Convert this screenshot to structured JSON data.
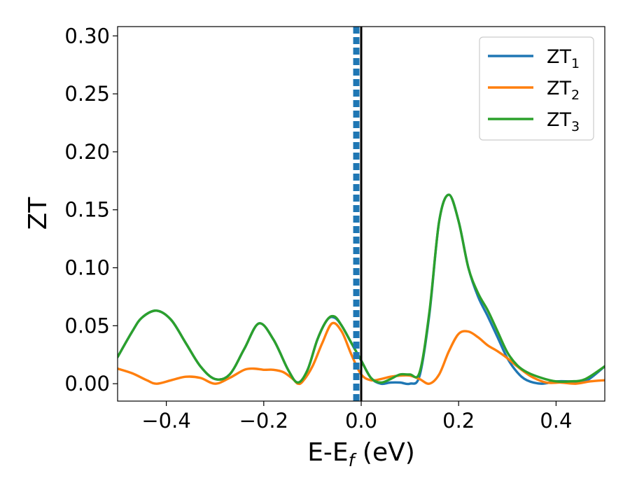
{
  "chart_data": {
    "type": "line",
    "title": "",
    "xlabel": "E-E",
    "xlabel_sub": "f",
    "xlabel_unit": " (eV)",
    "ylabel": "ZT",
    "xlim": [
      -0.5,
      0.5
    ],
    "ylim": [
      -0.015,
      0.308
    ],
    "xticks": [
      -0.4,
      -0.2,
      0.0,
      0.2,
      0.4
    ],
    "xtick_labels": [
      "−0.4",
      "−0.2",
      "0.0",
      "0.2",
      "0.4"
    ],
    "yticks": [
      0.0,
      0.05,
      0.1,
      0.15,
      0.2,
      0.25,
      0.3
    ],
    "ytick_labels": [
      "0.00",
      "0.05",
      "0.10",
      "0.15",
      "0.20",
      "0.25",
      "0.30"
    ],
    "grid": false,
    "legend_position": "top-right",
    "vlines": [
      {
        "x": -0.01,
        "style": "dashed",
        "color": "#1f77b4"
      },
      {
        "x": 0.0,
        "style": "solid",
        "color": "#000000"
      }
    ],
    "series": [
      {
        "name": "ZT",
        "name_sub": "1",
        "color": "#1f77b4",
        "x": [
          -0.5,
          -0.47,
          -0.45,
          -0.42,
          -0.39,
          -0.36,
          -0.33,
          -0.3,
          -0.27,
          -0.24,
          -0.21,
          -0.18,
          -0.15,
          -0.13,
          -0.11,
          -0.09,
          -0.07,
          -0.055,
          -0.04,
          -0.02,
          0.0,
          0.02,
          0.04,
          0.06,
          0.08,
          0.1,
          0.12,
          0.14,
          0.16,
          0.18,
          0.2,
          0.22,
          0.24,
          0.26,
          0.28,
          0.3,
          0.32,
          0.34,
          0.37,
          0.4,
          0.43,
          0.46,
          0.5
        ],
        "y": [
          0.023,
          0.045,
          0.057,
          0.063,
          0.055,
          0.035,
          0.015,
          0.004,
          0.008,
          0.03,
          0.052,
          0.038,
          0.012,
          0.001,
          0.012,
          0.038,
          0.055,
          0.057,
          0.05,
          0.035,
          0.02,
          0.005,
          0.0,
          0.001,
          0.001,
          0.0,
          0.007,
          0.06,
          0.14,
          0.163,
          0.14,
          0.1,
          0.075,
          0.058,
          0.04,
          0.022,
          0.01,
          0.003,
          0.0,
          0.002,
          0.002,
          0.002,
          0.015
        ]
      },
      {
        "name": "ZT",
        "name_sub": "2",
        "color": "#ff7f0e",
        "x": [
          -0.5,
          -0.47,
          -0.44,
          -0.42,
          -0.39,
          -0.36,
          -0.33,
          -0.3,
          -0.27,
          -0.24,
          -0.22,
          -0.2,
          -0.18,
          -0.16,
          -0.14,
          -0.13,
          -0.12,
          -0.1,
          -0.08,
          -0.06,
          -0.04,
          -0.02,
          0.0,
          0.02,
          0.04,
          0.06,
          0.08,
          0.1,
          0.12,
          0.14,
          0.16,
          0.18,
          0.2,
          0.22,
          0.24,
          0.26,
          0.28,
          0.3,
          0.32,
          0.35,
          0.38,
          0.41,
          0.44,
          0.47,
          0.5
        ],
        "y": [
          0.013,
          0.009,
          0.003,
          0.0,
          0.003,
          0.006,
          0.005,
          0.0,
          0.005,
          0.012,
          0.013,
          0.012,
          0.012,
          0.01,
          0.004,
          0.0,
          0.002,
          0.015,
          0.035,
          0.052,
          0.045,
          0.025,
          0.008,
          0.003,
          0.004,
          0.006,
          0.007,
          0.007,
          0.004,
          0.0,
          0.008,
          0.028,
          0.043,
          0.045,
          0.04,
          0.033,
          0.028,
          0.022,
          0.015,
          0.006,
          0.001,
          0.001,
          0.0,
          0.002,
          0.003
        ]
      },
      {
        "name": "ZT",
        "name_sub": "3",
        "color": "#2ca02c",
        "x": [
          -0.5,
          -0.47,
          -0.45,
          -0.42,
          -0.39,
          -0.36,
          -0.33,
          -0.3,
          -0.27,
          -0.24,
          -0.21,
          -0.18,
          -0.15,
          -0.13,
          -0.11,
          -0.09,
          -0.07,
          -0.055,
          -0.04,
          -0.02,
          0.0,
          0.02,
          0.04,
          0.06,
          0.08,
          0.1,
          0.12,
          0.14,
          0.16,
          0.18,
          0.2,
          0.22,
          0.24,
          0.26,
          0.28,
          0.3,
          0.32,
          0.34,
          0.37,
          0.4,
          0.43,
          0.46,
          0.5
        ],
        "y": [
          0.023,
          0.045,
          0.057,
          0.063,
          0.055,
          0.035,
          0.015,
          0.004,
          0.008,
          0.03,
          0.052,
          0.038,
          0.012,
          0.001,
          0.012,
          0.038,
          0.055,
          0.058,
          0.05,
          0.035,
          0.02,
          0.005,
          0.001,
          0.004,
          0.008,
          0.008,
          0.01,
          0.062,
          0.14,
          0.163,
          0.14,
          0.1,
          0.078,
          0.063,
          0.045,
          0.027,
          0.016,
          0.01,
          0.005,
          0.002,
          0.002,
          0.004,
          0.015
        ]
      }
    ]
  }
}
